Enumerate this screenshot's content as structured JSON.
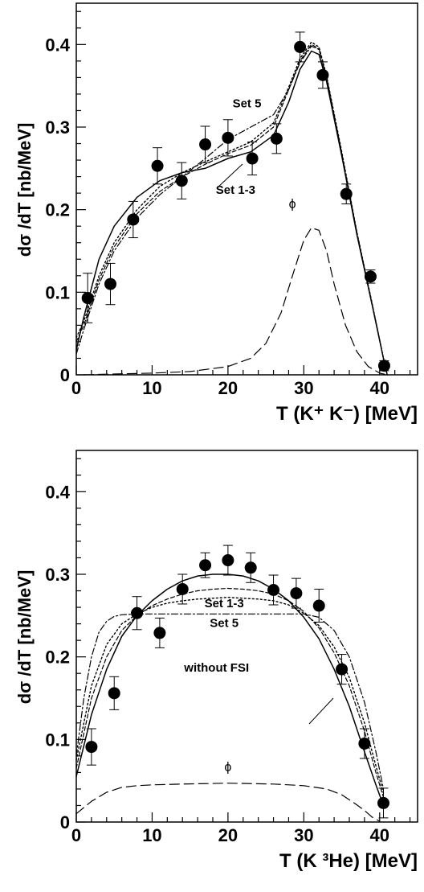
{
  "chart_data": [
    {
      "type": "scatter",
      "xlabel": "T (K⁺ K⁻) [MeV]",
      "ylabel": "dσ /dT [nb/MeV]",
      "xlim": [
        0,
        45
      ],
      "ylim": [
        0,
        0.45
      ],
      "xticks": [
        "0",
        "10",
        "20",
        "30",
        "40"
      ],
      "yticks": [
        "0",
        "0.1",
        "0.2",
        "0.3",
        "0.4"
      ],
      "grid": false,
      "series": [
        {
          "kind": "points-with-errorbars",
          "x": [
            1.5,
            4.5,
            7.5,
            10.7,
            13.9,
            17.0,
            20.0,
            23.2,
            26.4,
            29.5,
            32.5,
            35.6,
            38.8,
            40.6
          ],
          "y": [
            0.093,
            0.11,
            0.188,
            0.253,
            0.235,
            0.279,
            0.287,
            0.262,
            0.286,
            0.397,
            0.363,
            0.219,
            0.119,
            0.011
          ],
          "err": [
            0.03,
            0.025,
            0.022,
            0.022,
            0.022,
            0.022,
            0.022,
            0.02,
            0.018,
            0.018,
            0.016,
            0.012,
            0.008,
            0.006
          ]
        },
        {
          "kind": "solid",
          "x": [
            0,
            1,
            3,
            5,
            8,
            11,
            14,
            17,
            20,
            23,
            26,
            28,
            29.5,
            31,
            32,
            33,
            35,
            37,
            39,
            40.5,
            41
          ],
          "y": [
            0.03,
            0.07,
            0.14,
            0.18,
            0.215,
            0.235,
            0.245,
            0.25,
            0.262,
            0.27,
            0.29,
            0.33,
            0.37,
            0.392,
            0.388,
            0.355,
            0.265,
            0.17,
            0.085,
            0.02,
            0.0
          ]
        },
        {
          "kind": "dashed",
          "x": [
            0,
            1,
            3,
            5,
            8,
            11,
            14,
            17,
            20,
            23,
            26,
            28,
            29.5,
            31,
            32,
            33,
            35,
            37,
            39,
            40.5,
            41
          ],
          "y": [
            0.04,
            0.06,
            0.115,
            0.155,
            0.195,
            0.222,
            0.24,
            0.255,
            0.268,
            0.278,
            0.3,
            0.345,
            0.38,
            0.4,
            0.395,
            0.36,
            0.268,
            0.172,
            0.086,
            0.02,
            0.0
          ]
        },
        {
          "kind": "dash-dot",
          "x": [
            0,
            1,
            3,
            5,
            8,
            11,
            14,
            17,
            20,
            23,
            26,
            28,
            29.5,
            31,
            32,
            33,
            35,
            37,
            39,
            40.5,
            41
          ],
          "y": [
            0.025,
            0.055,
            0.11,
            0.15,
            0.19,
            0.218,
            0.24,
            0.262,
            0.285,
            0.3,
            0.315,
            0.345,
            0.378,
            0.398,
            0.394,
            0.36,
            0.268,
            0.172,
            0.086,
            0.02,
            0.0
          ]
        },
        {
          "kind": "dotted",
          "x": [
            0,
            1,
            3,
            5,
            8,
            11,
            14,
            17,
            20,
            23,
            26,
            28,
            29.5,
            31,
            32,
            33,
            35,
            37,
            39,
            40.5,
            41
          ],
          "y": [
            0.045,
            0.065,
            0.12,
            0.16,
            0.2,
            0.228,
            0.245,
            0.258,
            0.27,
            0.282,
            0.305,
            0.348,
            0.383,
            0.403,
            0.397,
            0.362,
            0.27,
            0.173,
            0.087,
            0.02,
            0.0
          ]
        },
        {
          "kind": "long-dashed",
          "x": [
            1,
            5,
            10,
            15,
            20,
            23,
            25,
            27,
            28.5,
            30,
            31,
            32,
            33,
            34,
            35.5,
            37,
            38.5,
            40,
            41
          ],
          "y": [
            0.0,
            0.001,
            0.002,
            0.004,
            0.01,
            0.02,
            0.038,
            0.075,
            0.12,
            0.163,
            0.178,
            0.175,
            0.15,
            0.11,
            0.06,
            0.028,
            0.01,
            0.002,
            0.0
          ]
        }
      ],
      "annotations": [
        {
          "text": "Set 5",
          "x": 22.5,
          "y": 0.324
        },
        {
          "text": "Set 1-3",
          "x": 21.0,
          "y": 0.219
        },
        {
          "text": "ϕ",
          "x": 28.5,
          "y": 0.202
        }
      ]
    },
    {
      "type": "scatter",
      "xlabel": "T (K ³He) [MeV]",
      "ylabel": "dσ /dT [nb/MeV]",
      "xlim": [
        0,
        45
      ],
      "ylim": [
        0,
        0.45
      ],
      "xticks": [
        "0",
        "10",
        "20",
        "30",
        "40"
      ],
      "yticks": [
        "0",
        "0.1",
        "0.2",
        "0.3",
        "0.4"
      ],
      "grid": false,
      "series": [
        {
          "kind": "points-with-errorbars",
          "x": [
            2.0,
            5.0,
            8.0,
            11.0,
            14.0,
            17.0,
            20.0,
            23.0,
            26.0,
            29.0,
            32.0,
            35.0,
            38.0,
            40.5
          ],
          "y": [
            0.091,
            0.156,
            0.253,
            0.229,
            0.282,
            0.311,
            0.317,
            0.308,
            0.281,
            0.277,
            0.262,
            0.185,
            0.095,
            0.023
          ],
          "err": [
            0.022,
            0.02,
            0.02,
            0.018,
            0.018,
            0.015,
            0.018,
            0.018,
            0.018,
            0.018,
            0.02,
            0.018,
            0.018,
            0.018
          ]
        },
        {
          "kind": "solid",
          "x": [
            0,
            2,
            4,
            6,
            8,
            10,
            12,
            14,
            16,
            18,
            20,
            22,
            24,
            26,
            28,
            30,
            32,
            34,
            36,
            38,
            39.5,
            40.5
          ],
          "y": [
            0.055,
            0.13,
            0.185,
            0.225,
            0.25,
            0.268,
            0.282,
            0.292,
            0.298,
            0.3,
            0.3,
            0.298,
            0.292,
            0.282,
            0.268,
            0.248,
            0.222,
            0.185,
            0.14,
            0.085,
            0.045,
            0.02
          ]
        },
        {
          "kind": "dashed",
          "x": [
            0,
            2,
            4,
            6,
            8,
            10,
            12,
            14,
            16,
            18,
            20,
            22,
            24,
            26,
            28,
            30,
            32,
            34,
            36,
            38,
            39.5,
            40.5
          ],
          "y": [
            0.065,
            0.15,
            0.2,
            0.232,
            0.25,
            0.262,
            0.27,
            0.276,
            0.28,
            0.282,
            0.283,
            0.282,
            0.28,
            0.276,
            0.268,
            0.255,
            0.235,
            0.205,
            0.165,
            0.11,
            0.06,
            0.03
          ]
        },
        {
          "kind": "dotted",
          "x": [
            0,
            2,
            4,
            6,
            8,
            10,
            12,
            14,
            16,
            18,
            20,
            22,
            24,
            26,
            28,
            30,
            32,
            34,
            36,
            38,
            39.5,
            40.5
          ],
          "y": [
            0.075,
            0.165,
            0.215,
            0.24,
            0.252,
            0.26,
            0.265,
            0.268,
            0.27,
            0.271,
            0.272,
            0.271,
            0.27,
            0.268,
            0.263,
            0.253,
            0.238,
            0.212,
            0.175,
            0.12,
            0.068,
            0.035
          ]
        },
        {
          "kind": "dash-dot",
          "x": [
            0,
            1,
            2,
            3,
            4,
            5,
            6,
            8,
            10,
            15,
            20,
            25,
            30,
            32,
            34,
            36,
            38,
            39.5,
            40.5
          ],
          "y": [
            0.08,
            0.15,
            0.2,
            0.23,
            0.243,
            0.249,
            0.251,
            0.252,
            0.252,
            0.252,
            0.252,
            0.252,
            0.252,
            0.248,
            0.232,
            0.2,
            0.145,
            0.085,
            0.04
          ]
        },
        {
          "kind": "long-dashed",
          "x": [
            0,
            2,
            4,
            6,
            8,
            10,
            14,
            20,
            26,
            30,
            33,
            35,
            36.5,
            38,
            39,
            40
          ],
          "y": [
            0.01,
            0.025,
            0.036,
            0.042,
            0.044,
            0.045,
            0.046,
            0.047,
            0.046,
            0.044,
            0.04,
            0.033,
            0.024,
            0.014,
            0.006,
            0.001
          ]
        }
      ],
      "annotations": [
        {
          "text": "Set 1-3",
          "x": 19.5,
          "y": 0.26
        },
        {
          "text": "Set 5",
          "x": 19.5,
          "y": 0.236
        },
        {
          "text": "without FSI",
          "x": 18.5,
          "y": 0.182
        },
        {
          "text": "ϕ",
          "x": 20.0,
          "y": 0.062
        }
      ]
    }
  ]
}
